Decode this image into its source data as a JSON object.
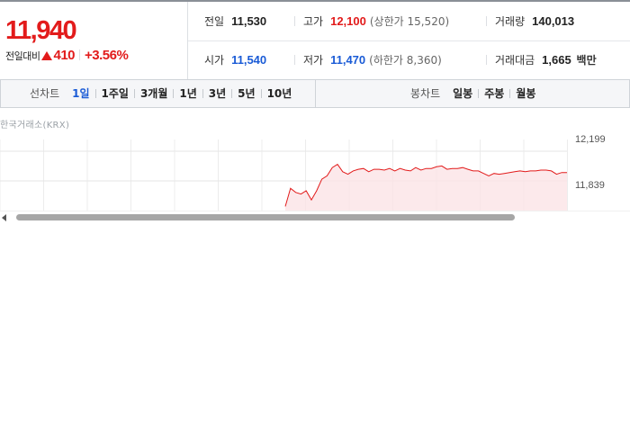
{
  "quote": {
    "current_price": "11,940",
    "change_label": "전일대비",
    "change_amount": "410",
    "change_percent": "+3.56%"
  },
  "stats": {
    "prev_close_label": "전일",
    "prev_close": "11,530",
    "high_label": "고가",
    "high": "12,100",
    "upper_limit": "(상한가 15,520)",
    "volume_label": "거래량",
    "volume": "140,013",
    "open_label": "시가",
    "open": "11,540",
    "low_label": "저가",
    "low": "11,470",
    "lower_limit": "(하한가 8,360)",
    "trade_value_label": "거래대금",
    "trade_value": "1,665",
    "trade_value_unit": "백만"
  },
  "toolbar": {
    "line_chart_title": "선차트",
    "line_periods": [
      "1일",
      "1주일",
      "3개월",
      "1년",
      "3년",
      "5년",
      "10년"
    ],
    "active_period": "1일",
    "candle_chart_title": "봉차트",
    "candle_periods": [
      "일봉",
      "주봉",
      "월봉"
    ]
  },
  "chart": {
    "exchange_label": "한국거래소(KRX)",
    "y_tick_top": "12,199",
    "y_tick_mid": "11,839",
    "line_color": "#e21b1b",
    "fill_color": "#fbe4e6"
  },
  "chart_data": {
    "type": "area",
    "title": "",
    "xlabel": "",
    "ylabel": "",
    "y_ticks": [
      12199,
      11839
    ],
    "series": [
      {
        "values": [
          11530,
          11750,
          11700,
          11680,
          11720,
          11610,
          11720,
          11860,
          11900,
          12000,
          12040,
          11950,
          11920,
          11960,
          11980,
          11990,
          11950,
          11980,
          11980,
          11970,
          11990,
          11960,
          11990,
          11970,
          11960,
          12000,
          11970,
          11990,
          11990,
          12010,
          12020,
          11980,
          11990,
          11990,
          12000,
          11980,
          11960,
          11960,
          11930,
          11900,
          11930,
          11920,
          11930,
          11940,
          11950,
          11960,
          11950,
          11960,
          11960,
          11970,
          11970,
          11960,
          11920,
          11940,
          11940
        ]
      }
    ],
    "ylim": [
      11480,
      12340
    ]
  }
}
